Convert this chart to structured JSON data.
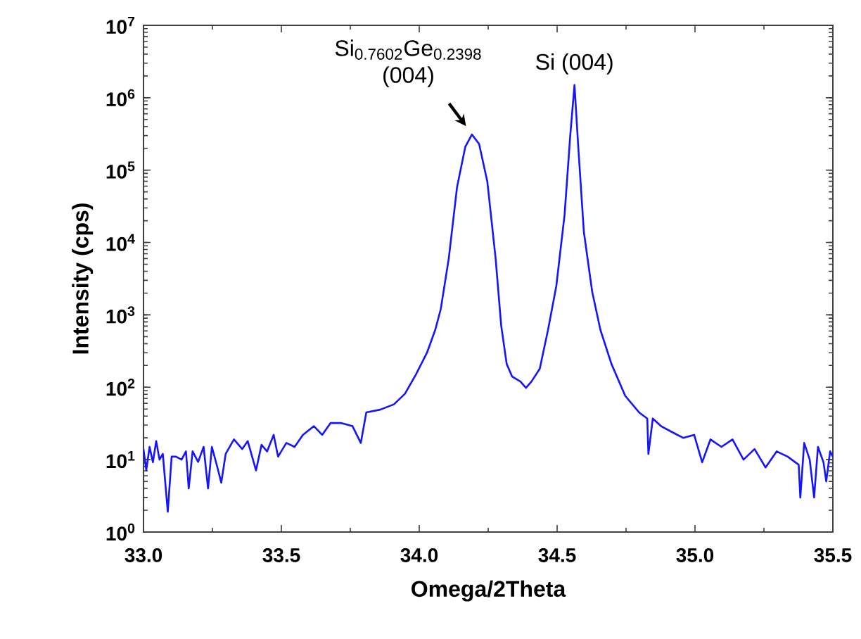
{
  "chart_data": {
    "type": "line",
    "xlabel": "Omega/2Theta",
    "ylabel": "Intensity (cps)",
    "xlim": [
      33.0,
      35.5
    ],
    "xticks": [
      {
        "value": 33.0,
        "label": "33.0"
      },
      {
        "value": 33.5,
        "label": "33.5"
      },
      {
        "value": 34.0,
        "label": "34.0"
      },
      {
        "value": 34.5,
        "label": "34.5"
      },
      {
        "value": 35.0,
        "label": "35.0"
      },
      {
        "value": 35.5,
        "label": "35.5"
      }
    ],
    "ylim": [
      1,
      10000000
    ],
    "log": "y",
    "yticks": [
      {
        "value": 1,
        "label": "10$^{0}$"
      },
      {
        "value": 10,
        "label": "10$^{1}$"
      },
      {
        "value": 100,
        "label": "10$^{2}$"
      },
      {
        "value": 1000,
        "label": "10$^{3}$"
      },
      {
        "value": 10000,
        "label": "10$^{4}$"
      },
      {
        "value": 100000,
        "label": "10$^{5}$"
      },
      {
        "value": 1000000,
        "label": "10$^{6}$"
      },
      {
        "value": 10000000,
        "label": "10$^{7}$"
      }
    ],
    "grid": false,
    "marker": "none",
    "line_style": "solid",
    "annotations": [
      {
        "text": "Si$_{0.7602}$Ge$_{0.2398}$ (004)",
        "x": 34.19,
        "y": 310000
      },
      {
        "text": "Si (004)",
        "x": 34.563,
        "y": 1500000
      }
    ],
    "series": [
      {
        "color": "#1414ff",
        "x": [
          33.0,
          33.01,
          33.022,
          33.034,
          33.046,
          33.058,
          33.07,
          33.088,
          33.102,
          33.118,
          33.138,
          33.154,
          33.164,
          33.178,
          33.198,
          33.218,
          33.234,
          33.248,
          33.268,
          33.282,
          33.298,
          33.328,
          33.358,
          33.378,
          33.408,
          33.428,
          33.448,
          33.472,
          33.488,
          33.518,
          33.548,
          33.578,
          33.618,
          33.648,
          33.678,
          33.718,
          33.758,
          33.788,
          33.808,
          33.858,
          33.908,
          33.948,
          33.988,
          34.028,
          34.058,
          34.078,
          34.107,
          34.137,
          34.167,
          34.191,
          34.217,
          34.247,
          34.277,
          34.297,
          34.317,
          34.337,
          34.367,
          34.387,
          34.407,
          34.437,
          34.467,
          34.497,
          34.527,
          34.547,
          34.563,
          34.577,
          34.597,
          34.627,
          34.657,
          34.697,
          34.747,
          34.797,
          34.827,
          34.831,
          34.847,
          34.877,
          34.917,
          34.957,
          34.997,
          35.026,
          35.056,
          35.096,
          35.136,
          35.176,
          35.216,
          35.256,
          35.296,
          35.336,
          35.376,
          35.382,
          35.396,
          35.416,
          35.432,
          35.446,
          35.466,
          35.476,
          35.49,
          35.5
        ],
        "values": [
          14,
          7.1,
          15,
          9.2,
          18,
          10,
          12,
          1.9,
          11,
          11,
          10,
          13,
          4,
          13,
          9.3,
          15,
          4,
          15,
          7.8,
          4.8,
          12,
          19,
          14,
          18,
          7.1,
          16,
          13,
          22,
          11,
          17,
          15,
          22,
          29,
          22,
          32,
          32,
          29,
          17,
          45,
          49,
          58,
          81,
          150,
          300,
          620,
          1200,
          6000,
          58000,
          210000,
          310000,
          230000,
          69000,
          6000,
          720,
          210,
          140,
          120,
          98,
          120,
          180,
          620,
          2500,
          24000,
          280000,
          1500000,
          200000,
          14000,
          2100,
          620,
          210,
          76,
          45,
          37,
          12,
          37,
          29,
          24,
          20,
          22,
          9.2,
          19,
          15,
          19,
          10,
          14,
          7.8,
          13,
          11,
          8.5,
          3,
          17,
          10,
          3,
          15,
          9.2,
          5,
          13,
          11
        ]
      }
    ]
  }
}
